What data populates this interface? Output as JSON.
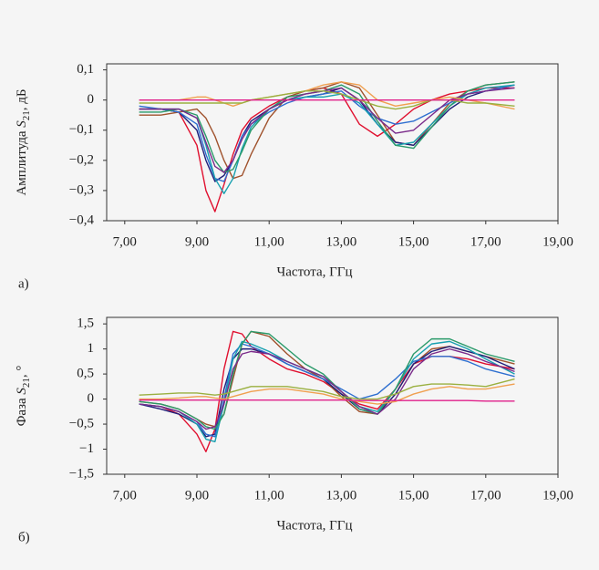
{
  "chart_data": [
    {
      "type": "line",
      "panel": "а)",
      "xlabel": "Частота, ГГц",
      "ylabel": {
        "prefix": "Амплитуда ",
        "symbol": "S",
        "subscript": "21",
        "suffix": ", дБ"
      },
      "xlim": [
        6.5,
        19
      ],
      "ylim": [
        -0.4,
        0.12
      ],
      "xticks": [
        {
          "value": 7,
          "label": "7,00"
        },
        {
          "value": 9,
          "label": "9,00"
        },
        {
          "value": 11,
          "label": "11,00"
        },
        {
          "value": 13,
          "label": "13,00"
        },
        {
          "value": 15,
          "label": "15,00"
        },
        {
          "value": 17,
          "label": "17,00"
        },
        {
          "value": 19,
          "label": "19,00"
        }
      ],
      "yticks": [
        {
          "value": 0.1,
          "label": "0,1"
        },
        0,
        {
          "value": -0.1,
          "label": "−0,1"
        },
        {
          "value": -0.2,
          "label": "−0,2"
        },
        {
          "value": -0.3,
          "label": "−0,3"
        },
        {
          "value": -0.4,
          "label": "−0,4"
        }
      ],
      "x": [
        7.4,
        8,
        8.5,
        9,
        9.25,
        9.5,
        9.75,
        10,
        10.25,
        10.5,
        11,
        11.5,
        12,
        12.5,
        13,
        13.5,
        14,
        14.5,
        15,
        15.5,
        16,
        16.5,
        17,
        17.8
      ],
      "series": [
        {
          "color": "#e0102f",
          "values": [
            -0.03,
            -0.03,
            -0.04,
            -0.15,
            -0.3,
            -0.37,
            -0.28,
            -0.18,
            -0.1,
            -0.06,
            -0.02,
            0.01,
            0.03,
            0.04,
            0.02,
            -0.08,
            -0.12,
            -0.08,
            -0.03,
            0.0,
            0.02,
            0.03,
            0.04,
            0.04
          ]
        },
        {
          "color": "#a0522d",
          "values": [
            -0.05,
            -0.05,
            -0.04,
            -0.03,
            -0.06,
            -0.12,
            -0.2,
            -0.26,
            -0.25,
            -0.18,
            -0.06,
            0.01,
            0.03,
            0.04,
            0.06,
            0.04,
            -0.05,
            -0.14,
            -0.15,
            -0.08,
            -0.01,
            0.03,
            0.05,
            0.06
          ]
        },
        {
          "color": "#1f1f7a",
          "values": [
            -0.03,
            -0.03,
            -0.04,
            -0.1,
            -0.2,
            -0.27,
            -0.25,
            -0.2,
            -0.12,
            -0.07,
            -0.03,
            0.0,
            0.01,
            0.02,
            0.04,
            0.0,
            -0.08,
            -0.14,
            -0.15,
            -0.09,
            -0.03,
            0.01,
            0.03,
            0.05
          ]
        },
        {
          "color": "#2e6fd0",
          "values": [
            -0.02,
            -0.03,
            -0.04,
            -0.08,
            -0.18,
            -0.26,
            -0.27,
            -0.2,
            -0.12,
            -0.08,
            -0.04,
            -0.01,
            0.01,
            0.02,
            0.03,
            -0.02,
            -0.06,
            -0.08,
            -0.07,
            -0.04,
            -0.01,
            0.02,
            0.03,
            0.05
          ]
        },
        {
          "color": "#18a0b0",
          "values": [
            -0.03,
            -0.03,
            -0.03,
            -0.06,
            -0.15,
            -0.26,
            -0.31,
            -0.26,
            -0.16,
            -0.09,
            -0.03,
            0.0,
            0.01,
            0.01,
            0.02,
            -0.01,
            -0.08,
            -0.15,
            -0.14,
            -0.08,
            -0.02,
            0.02,
            0.04,
            0.05
          ]
        },
        {
          "color": "#2a9a6a",
          "values": [
            -0.04,
            -0.04,
            -0.03,
            -0.05,
            -0.12,
            -0.2,
            -0.24,
            -0.23,
            -0.17,
            -0.1,
            -0.03,
            0.01,
            0.02,
            0.03,
            0.05,
            0.02,
            -0.07,
            -0.15,
            -0.16,
            -0.09,
            -0.02,
            0.03,
            0.05,
            0.06
          ]
        },
        {
          "color": "#7a2a8a",
          "values": [
            -0.03,
            -0.03,
            -0.03,
            -0.06,
            -0.14,
            -0.22,
            -0.24,
            -0.2,
            -0.13,
            -0.08,
            -0.03,
            0.0,
            0.02,
            0.03,
            0.04,
            0.0,
            -0.06,
            -0.11,
            -0.1,
            -0.05,
            0.0,
            0.02,
            0.03,
            0.04
          ]
        },
        {
          "color": "#f0a050",
          "values": [
            0.0,
            0.0,
            0.0,
            0.01,
            0.01,
            0.0,
            -0.01,
            -0.02,
            -0.01,
            0.0,
            0.01,
            0.02,
            0.03,
            0.05,
            0.06,
            0.05,
            0.0,
            -0.02,
            -0.01,
            0.0,
            0.01,
            0.0,
            -0.01,
            -0.03
          ]
        },
        {
          "color": "#9ab040",
          "values": [
            -0.01,
            -0.01,
            -0.01,
            -0.01,
            -0.01,
            -0.01,
            -0.01,
            -0.01,
            -0.01,
            0.0,
            0.01,
            0.02,
            0.03,
            0.03,
            0.02,
            0.0,
            -0.02,
            -0.03,
            -0.02,
            0.0,
            0.0,
            -0.01,
            -0.01,
            -0.02
          ]
        },
        {
          "color": "#e0208a",
          "values": [
            0,
            0,
            0,
            0,
            0,
            0,
            0,
            0,
            0,
            0,
            0,
            0,
            0,
            0,
            0,
            0,
            0,
            0,
            0,
            0,
            0,
            0,
            0,
            0
          ]
        }
      ]
    },
    {
      "type": "line",
      "panel": "б)",
      "xlabel": "Частота, ГГц",
      "ylabel": {
        "prefix": "Фаза ",
        "symbol": "S",
        "subscript": "21",
        "suffix": ", °"
      },
      "xlim": [
        6.5,
        19
      ],
      "ylim": [
        -1.5,
        1.63
      ],
      "xticks": [
        {
          "value": 7,
          "label": "7,00"
        },
        {
          "value": 9,
          "label": "9,00"
        },
        {
          "value": 11,
          "label": "11,00"
        },
        {
          "value": 13,
          "label": "13,00"
        },
        {
          "value": 15,
          "label": "15,00"
        },
        {
          "value": 17,
          "label": "17,00"
        },
        {
          "value": 19,
          "label": "19,00"
        }
      ],
      "yticks": [
        {
          "value": 1.5,
          "label": "1,5"
        },
        1,
        {
          "value": 0.5,
          "label": "0,5"
        },
        0,
        {
          "value": -0.5,
          "label": "−0,5"
        },
        {
          "value": -1,
          "label": "−1"
        },
        {
          "value": -1.5,
          "label": "−1,5"
        }
      ],
      "x": [
        7.4,
        8,
        8.5,
        9,
        9.25,
        9.5,
        9.75,
        10,
        10.25,
        10.5,
        11,
        11.5,
        12,
        12.5,
        13,
        13.5,
        14,
        14.5,
        15,
        15.5,
        16,
        16.5,
        17,
        17.8
      ],
      "series": [
        {
          "color": "#e0102f",
          "values": [
            -0.1,
            -0.15,
            -0.3,
            -0.7,
            -1.05,
            -0.6,
            0.6,
            1.35,
            1.3,
            1.05,
            0.8,
            0.6,
            0.5,
            0.35,
            0.1,
            -0.1,
            -0.2,
            0.2,
            0.7,
            0.85,
            0.85,
            0.8,
            0.7,
            0.6
          ]
        },
        {
          "color": "#a0522d",
          "values": [
            -0.05,
            -0.1,
            -0.2,
            -0.4,
            -0.5,
            -0.55,
            -0.3,
            0.4,
            1.1,
            1.35,
            1.25,
            0.9,
            0.6,
            0.4,
            0.05,
            -0.25,
            -0.3,
            0.1,
            0.7,
            1.0,
            1.05,
            0.95,
            0.85,
            0.7
          ]
        },
        {
          "color": "#1f1f7a",
          "values": [
            -0.1,
            -0.2,
            -0.3,
            -0.5,
            -0.75,
            -0.7,
            0.2,
            0.8,
            1.0,
            1.0,
            0.9,
            0.7,
            0.55,
            0.4,
            0.1,
            -0.2,
            -0.3,
            0.1,
            0.7,
            0.95,
            1.05,
            0.95,
            0.85,
            0.6
          ]
        },
        {
          "color": "#2e6fd0",
          "values": [
            -0.1,
            -0.15,
            -0.25,
            -0.45,
            -0.7,
            -0.75,
            0.0,
            0.9,
            1.1,
            1.05,
            0.9,
            0.7,
            0.55,
            0.4,
            0.2,
            0.0,
            0.1,
            0.4,
            0.75,
            0.85,
            0.85,
            0.75,
            0.6,
            0.45
          ]
        },
        {
          "color": "#18a0b0",
          "values": [
            -0.1,
            -0.15,
            -0.25,
            -0.5,
            -0.8,
            -0.85,
            -0.1,
            0.8,
            1.15,
            1.1,
            0.95,
            0.75,
            0.6,
            0.45,
            0.15,
            -0.15,
            -0.25,
            0.2,
            0.8,
            1.1,
            1.15,
            1.0,
            0.8,
            0.5
          ]
        },
        {
          "color": "#2a9a6a",
          "values": [
            -0.05,
            -0.1,
            -0.2,
            -0.4,
            -0.55,
            -0.6,
            -0.3,
            0.5,
            1.1,
            1.35,
            1.3,
            1.0,
            0.7,
            0.5,
            0.15,
            -0.2,
            -0.3,
            0.2,
            0.9,
            1.2,
            1.2,
            1.05,
            0.9,
            0.75
          ]
        },
        {
          "color": "#7a2a8a",
          "values": [
            -0.1,
            -0.15,
            -0.25,
            -0.45,
            -0.6,
            -0.55,
            -0.1,
            0.6,
            0.9,
            0.95,
            0.9,
            0.75,
            0.6,
            0.45,
            0.15,
            -0.15,
            -0.3,
            0.0,
            0.6,
            0.9,
            1.0,
            0.9,
            0.75,
            0.55
          ]
        },
        {
          "color": "#f0a050",
          "values": [
            0.0,
            0.0,
            0.02,
            0.05,
            0.05,
            0.02,
            0.0,
            0.05,
            0.1,
            0.15,
            0.2,
            0.2,
            0.15,
            0.1,
            0.0,
            -0.05,
            -0.1,
            -0.05,
            0.1,
            0.2,
            0.25,
            0.2,
            0.2,
            0.3
          ]
        },
        {
          "color": "#9ab040",
          "values": [
            0.08,
            0.1,
            0.12,
            0.12,
            0.1,
            0.08,
            0.1,
            0.15,
            0.2,
            0.25,
            0.25,
            0.25,
            0.2,
            0.15,
            0.05,
            0.0,
            0.0,
            0.1,
            0.25,
            0.3,
            0.3,
            0.28,
            0.25,
            0.4
          ]
        },
        {
          "color": "#e0208a",
          "values": [
            -0.02,
            -0.02,
            -0.02,
            -0.02,
            -0.02,
            -0.02,
            -0.02,
            -0.02,
            -0.02,
            -0.02,
            -0.02,
            -0.02,
            -0.02,
            -0.02,
            -0.02,
            -0.03,
            -0.03,
            -0.03,
            -0.03,
            -0.03,
            -0.03,
            -0.03,
            -0.04,
            -0.04
          ]
        }
      ]
    }
  ]
}
